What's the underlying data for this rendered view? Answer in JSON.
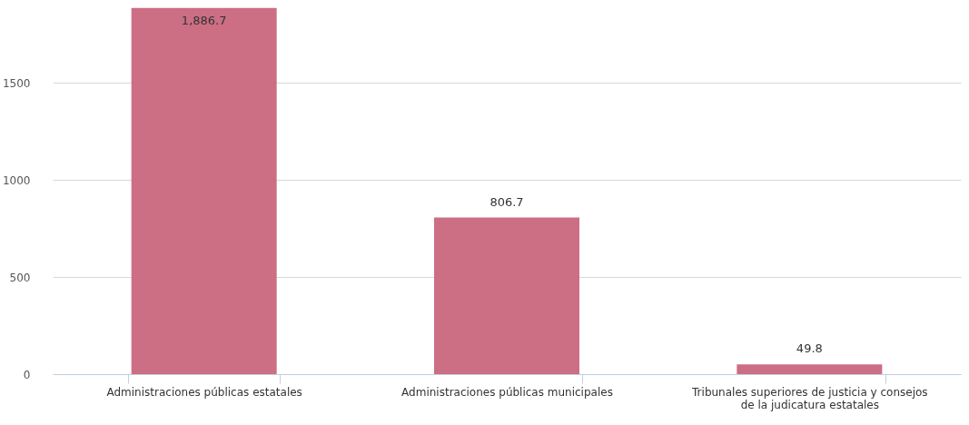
{
  "chart_data": {
    "type": "bar",
    "categories": [
      "Administraciones públicas estatales",
      "Administraciones públicas municipales",
      "Tribunales superiores de justicia y consejos de la judicatura estatales"
    ],
    "values": [
      1886.7,
      806.7,
      49.8
    ],
    "value_labels": [
      "1,886.7",
      "806.7",
      "49.8"
    ],
    "color": "#cc6e84",
    "ylim": [
      0,
      1890
    ],
    "yticks": [
      0,
      500,
      1000,
      1500
    ],
    "grid": "y"
  }
}
